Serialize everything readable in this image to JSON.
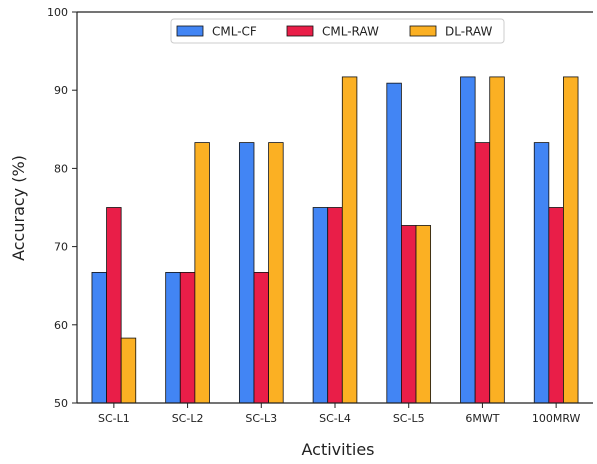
{
  "chart_data": {
    "type": "bar",
    "title": "",
    "xlabel": "Activities",
    "ylabel": "Accuracy (%)",
    "ylim": [
      50,
      100
    ],
    "yticks": [
      50,
      60,
      70,
      80,
      90,
      100
    ],
    "grid": false,
    "legend_position": "top-center",
    "categories": [
      "SC-L1",
      "SC-L2",
      "SC-L3",
      "SC-L4",
      "SC-L5",
      "6MWT",
      "100MRW"
    ],
    "series": [
      {
        "name": "CML-CF",
        "color": "#4285f4",
        "values": [
          66.7,
          66.7,
          83.3,
          75.0,
          90.9,
          91.7,
          83.3
        ]
      },
      {
        "name": "CML-RAW",
        "color": "#e91e48",
        "values": [
          75.0,
          66.7,
          66.7,
          75.0,
          72.7,
          83.3,
          75.0
        ]
      },
      {
        "name": "DL-RAW",
        "color": "#fbb023",
        "values": [
          58.3,
          83.3,
          83.3,
          91.7,
          72.7,
          91.7,
          91.7
        ]
      }
    ]
  }
}
